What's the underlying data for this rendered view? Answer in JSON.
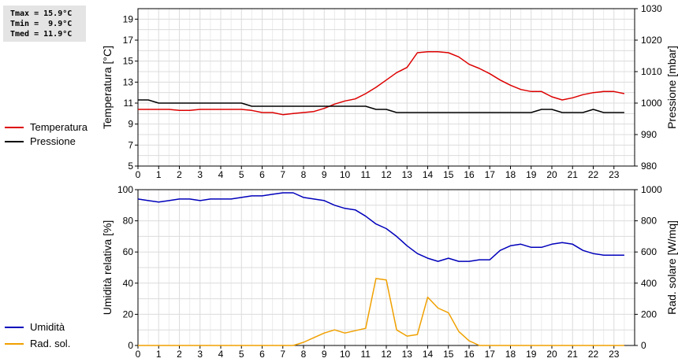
{
  "stats": {
    "tmax": "Tmax = 15.9°C",
    "tmin": "Tmin =  9.9°C",
    "tmed": "Tmed = 11.9°C"
  },
  "chart_data": [
    {
      "type": "line",
      "xlabel": "",
      "xlim": [
        0,
        24
      ],
      "xticks": [
        0,
        1,
        2,
        3,
        4,
        5,
        6,
        7,
        8,
        9,
        10,
        11,
        12,
        13,
        14,
        15,
        16,
        17,
        18,
        19,
        20,
        21,
        22,
        23
      ],
      "ylabel": "Temperatura [°C]",
      "ylim": [
        5,
        20
      ],
      "yticks": [
        5,
        7,
        9,
        11,
        13,
        15,
        17,
        19
      ],
      "y2label": "Pressione [mbar]",
      "y2lim": [
        980,
        1030
      ],
      "y2ticks": [
        980,
        990,
        1000,
        1010,
        1020,
        1030
      ],
      "grid": true,
      "legend": "left",
      "series": [
        {
          "name": "Temperatura",
          "axis": "left",
          "color": "#dd0000",
          "x": [
            0,
            0.5,
            1,
            1.5,
            2,
            2.5,
            3,
            3.5,
            4,
            4.5,
            5,
            5.5,
            6,
            6.5,
            7,
            7.5,
            8,
            8.5,
            9,
            9.5,
            10,
            10.5,
            11,
            11.5,
            12,
            12.5,
            13,
            13.5,
            14,
            14.5,
            15,
            15.5,
            16,
            16.5,
            17,
            17.5,
            18,
            18.5,
            19,
            19.5,
            20,
            20.5,
            21,
            21.5,
            22,
            22.5,
            23,
            23.5
          ],
          "values": [
            10.4,
            10.4,
            10.4,
            10.4,
            10.3,
            10.3,
            10.4,
            10.4,
            10.4,
            10.4,
            10.4,
            10.3,
            10.1,
            10.1,
            9.9,
            10.0,
            10.1,
            10.2,
            10.5,
            10.9,
            11.2,
            11.4,
            11.9,
            12.5,
            13.2,
            13.9,
            14.4,
            15.8,
            15.9,
            15.9,
            15.8,
            15.4,
            14.7,
            14.3,
            13.8,
            13.2,
            12.7,
            12.3,
            12.1,
            12.1,
            11.6,
            11.3,
            11.5,
            11.8,
            12.0,
            12.1,
            12.1,
            11.9
          ]
        },
        {
          "name": "Pressione",
          "axis": "right",
          "color": "#000000",
          "x": [
            0,
            0.5,
            1,
            1.5,
            2,
            2.5,
            3,
            3.5,
            4,
            4.5,
            5,
            5.5,
            6,
            6.5,
            7,
            7.5,
            8,
            8.5,
            9,
            9.5,
            10,
            10.5,
            11,
            11.5,
            12,
            12.5,
            13,
            13.5,
            14,
            14.5,
            15,
            15.5,
            16,
            16.5,
            17,
            17.5,
            18,
            18.5,
            19,
            19.5,
            20,
            20.5,
            21,
            21.5,
            22,
            22.5,
            23,
            23.5
          ],
          "values": [
            1001,
            1001,
            1000,
            1000,
            1000,
            1000,
            1000,
            1000,
            1000,
            1000,
            1000,
            999,
            999,
            999,
            999,
            999,
            999,
            999,
            999,
            999,
            999,
            999,
            999,
            998,
            998,
            997,
            997,
            997,
            997,
            997,
            997,
            997,
            997,
            997,
            997,
            997,
            997,
            997,
            997,
            998,
            998,
            997,
            997,
            997,
            998,
            997,
            997,
            997
          ]
        }
      ]
    },
    {
      "type": "line",
      "xlabel": "",
      "xlim": [
        0,
        24
      ],
      "xticks": [
        0,
        1,
        2,
        3,
        4,
        5,
        6,
        7,
        8,
        9,
        10,
        11,
        12,
        13,
        14,
        15,
        16,
        17,
        18,
        19,
        20,
        21,
        22,
        23
      ],
      "ylabel": "Umidità relativa [%]",
      "ylim": [
        0,
        100
      ],
      "yticks": [
        0,
        20,
        40,
        60,
        80,
        100
      ],
      "y2label": "Rad. solare [W/mq]",
      "y2lim": [
        0,
        1000
      ],
      "y2ticks": [
        0,
        200,
        400,
        600,
        800,
        1000
      ],
      "grid": true,
      "legend": "left",
      "series": [
        {
          "name": "Umidità",
          "axis": "left",
          "color": "#0000bb",
          "x": [
            0,
            0.5,
            1,
            1.5,
            2,
            2.5,
            3,
            3.5,
            4,
            4.5,
            5,
            5.5,
            6,
            6.5,
            7,
            7.5,
            8,
            8.5,
            9,
            9.5,
            10,
            10.5,
            11,
            11.5,
            12,
            12.5,
            13,
            13.5,
            14,
            14.5,
            15,
            15.5,
            16,
            16.5,
            17,
            17.5,
            18,
            18.5,
            19,
            19.5,
            20,
            20.5,
            21,
            21.5,
            22,
            22.5,
            23,
            23.5
          ],
          "values": [
            94,
            93,
            92,
            93,
            94,
            94,
            93,
            94,
            94,
            94,
            95,
            96,
            96,
            97,
            98,
            98,
            95,
            94,
            93,
            90,
            88,
            87,
            83,
            78,
            75,
            70,
            64,
            59,
            56,
            54,
            56,
            54,
            54,
            55,
            55,
            61,
            64,
            65,
            63,
            63,
            65,
            66,
            65,
            61,
            59,
            58,
            58,
            58
          ]
        },
        {
          "name": "Rad. sol.",
          "axis": "right",
          "color": "#f0a000",
          "x": [
            0,
            0.5,
            1,
            1.5,
            2,
            2.5,
            3,
            3.5,
            4,
            4.5,
            5,
            5.5,
            6,
            6.5,
            7,
            7.5,
            8,
            8.5,
            9,
            9.5,
            10,
            10.5,
            11,
            11.5,
            12,
            12.5,
            13,
            13.5,
            14,
            14.5,
            15,
            15.5,
            16,
            16.5,
            17,
            17.5,
            18,
            18.5,
            19,
            19.5,
            20,
            20.5,
            21,
            21.5,
            22,
            22.5,
            23,
            23.5
          ],
          "values": [
            0,
            0,
            0,
            0,
            0,
            0,
            0,
            0,
            0,
            0,
            0,
            0,
            0,
            0,
            0,
            0,
            20,
            50,
            80,
            100,
            80,
            95,
            110,
            430,
            420,
            100,
            60,
            70,
            310,
            240,
            210,
            90,
            30,
            0,
            0,
            0,
            0,
            0,
            0,
            0,
            0,
            0,
            0,
            0,
            0,
            0,
            0,
            0
          ]
        }
      ]
    }
  ]
}
